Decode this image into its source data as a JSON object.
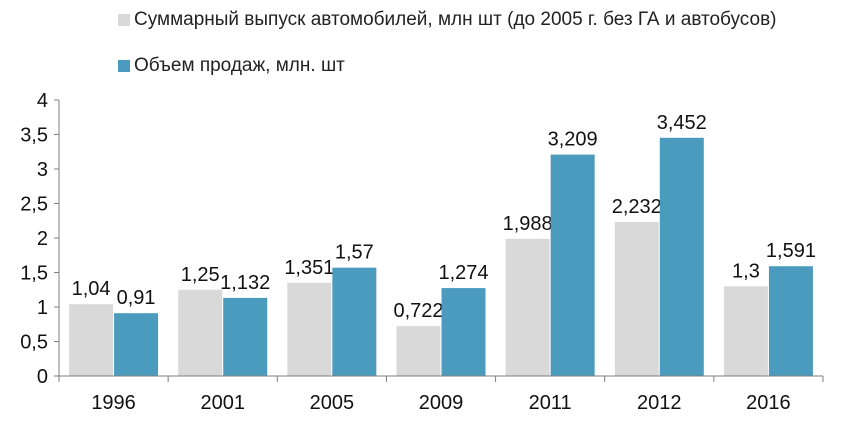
{
  "chart_data": {
    "type": "bar",
    "categories": [
      "1996",
      "2001",
      "2005",
      "2009",
      "2011",
      "2012",
      "2016"
    ],
    "series": [
      {
        "name": "Суммарный выпуск автомобилей, млн шт (до 2005 г. без ГА и автобусов)",
        "values": [
          1.04,
          1.25,
          1.351,
          0.722,
          1.988,
          2.232,
          1.3
        ],
        "labels": [
          "1,04",
          "1,25",
          "1,351",
          "0,722",
          "1,988",
          "2,232",
          "1,3"
        ],
        "color": "#d9d9d9"
      },
      {
        "name": "Объем продаж, млн. шт",
        "values": [
          0.91,
          1.132,
          1.57,
          1.274,
          3.209,
          3.452,
          1.591
        ],
        "labels": [
          "0,91",
          "1,132",
          "1,57",
          "1,274",
          "3,209",
          "3,452",
          "1,591"
        ],
        "color": "#4a9bbd"
      }
    ],
    "ylim": [
      0,
      4
    ],
    "yticks": [
      0,
      0.5,
      1,
      1.5,
      2,
      2.5,
      3,
      3.5,
      4
    ],
    "ytick_labels": [
      "0",
      "0,5",
      "1",
      "1,5",
      "2",
      "2,5",
      "3",
      "3,5",
      "4"
    ],
    "legend": "top",
    "grid": false
  }
}
